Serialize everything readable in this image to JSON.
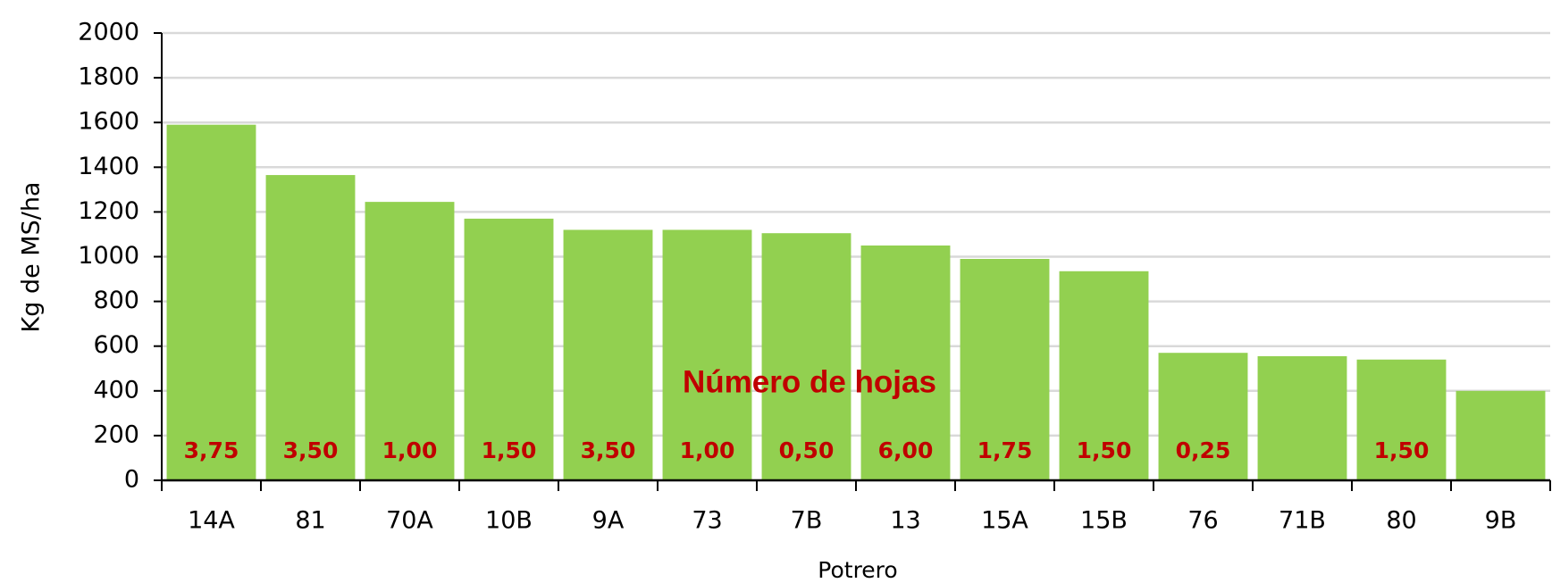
{
  "chart_data": {
    "type": "bar",
    "x_label": "Potrero",
    "y_label": "Kg de MS/ha",
    "annotation": "Número de hojas",
    "categories": [
      "14A",
      "81",
      "70A",
      "10B",
      "9A",
      "73",
      "7B",
      "13",
      "15A",
      "15B",
      "76",
      "71B",
      "80",
      "9B"
    ],
    "values": [
      1590,
      1365,
      1245,
      1170,
      1120,
      1120,
      1105,
      1050,
      990,
      935,
      570,
      555,
      540,
      400
    ],
    "color": "#92d050",
    "leaves": {
      "color": "#c00000",
      "values": [
        3.75,
        3.5,
        1,
        1.5,
        3.5,
        1,
        0.5,
        6,
        1.75,
        1.5,
        0.25,
        null,
        1.5,
        null
      ],
      "value_labels": [
        "3,75",
        "3,50",
        "1,00",
        "1,50",
        "3,50",
        "1,00",
        "0,50",
        "6,00",
        "1,75",
        "1,50",
        "0,25",
        null,
        "1,50",
        null
      ]
    },
    "ylim": [
      0,
      2000
    ],
    "yticks": [
      0,
      200,
      400,
      600,
      800,
      1000,
      1200,
      1400,
      1600,
      1800,
      2000
    ],
    "grid": true
  }
}
